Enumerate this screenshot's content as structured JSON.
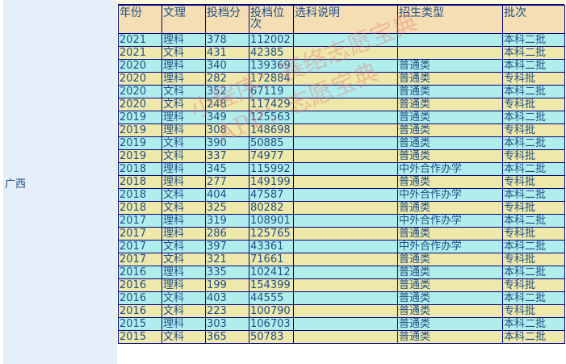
{
  "province": "广西",
  "headers": [
    "年份",
    "文理",
    "投档分",
    "投档位次",
    "选科说明",
    "招生类型",
    "批次"
  ],
  "rows": [
    [
      "2021",
      "理科",
      "378",
      "112002",
      "",
      "",
      "本科二批"
    ],
    [
      "2021",
      "文科",
      "431",
      "42385",
      "",
      "",
      "本科二批"
    ],
    [
      "2020",
      "理科",
      "340",
      "139369",
      "",
      "普通类",
      "本科二批"
    ],
    [
      "2020",
      "理科",
      "282",
      "172884",
      "",
      "普通类",
      "专科批"
    ],
    [
      "2020",
      "文科",
      "352",
      "67119",
      "",
      "普通类",
      "本科二批"
    ],
    [
      "2020",
      "文科",
      "248",
      "117429",
      "",
      "普通类",
      "专科批"
    ],
    [
      "2019",
      "理科",
      "349",
      "125563",
      "",
      "普通类",
      "本科二批"
    ],
    [
      "2019",
      "理科",
      "308",
      "148698",
      "",
      "普通类",
      "专科批"
    ],
    [
      "2019",
      "文科",
      "390",
      "50885",
      "",
      "普通类",
      "本科二批"
    ],
    [
      "2019",
      "文科",
      "337",
      "74977",
      "",
      "普通类",
      "专科批"
    ],
    [
      "2018",
      "理科",
      "345",
      "115992",
      "",
      "中外合作办学",
      "本科二批"
    ],
    [
      "2018",
      "理科",
      "277",
      "149199",
      "",
      "普通类",
      "专科批"
    ],
    [
      "2018",
      "文科",
      "404",
      "47587",
      "",
      "中外合作办学",
      "本科二批"
    ],
    [
      "2018",
      "文科",
      "325",
      "80282",
      "",
      "普通类",
      "专科批"
    ],
    [
      "2017",
      "理科",
      "319",
      "108901",
      "",
      "中外合作办学",
      "本科二批"
    ],
    [
      "2017",
      "理科",
      "286",
      "125765",
      "",
      "普通类",
      "专科批"
    ],
    [
      "2017",
      "文科",
      "397",
      "43361",
      "",
      "中外合作办学",
      "本科二批"
    ],
    [
      "2017",
      "文科",
      "321",
      "71661",
      "",
      "普通类",
      "专科批"
    ],
    [
      "2016",
      "理科",
      "335",
      "102412",
      "",
      "普通类",
      "本科二批"
    ],
    [
      "2016",
      "理科",
      "199",
      "154399",
      "",
      "普通类",
      "专科批"
    ],
    [
      "2016",
      "文科",
      "403",
      "44555",
      "",
      "普通类",
      "本科二批"
    ],
    [
      "2016",
      "文科",
      "223",
      "100790",
      "",
      "普通类",
      "专科批"
    ],
    [
      "2015",
      "理科",
      "303",
      "106703",
      "",
      "普通类",
      "本科二批"
    ],
    [
      "2015",
      "文科",
      "365",
      "50783",
      "",
      "普通类",
      "本科二批"
    ]
  ],
  "watermark": [
    "小程序：赛络志愿宝典",
    "APP：志愿宝典"
  ],
  "colors": {
    "header": "#f5deb3",
    "row_odd": "#b0eeee",
    "row_even": "#eee8aa",
    "border": "#000080",
    "text": "#1e4f86"
  }
}
